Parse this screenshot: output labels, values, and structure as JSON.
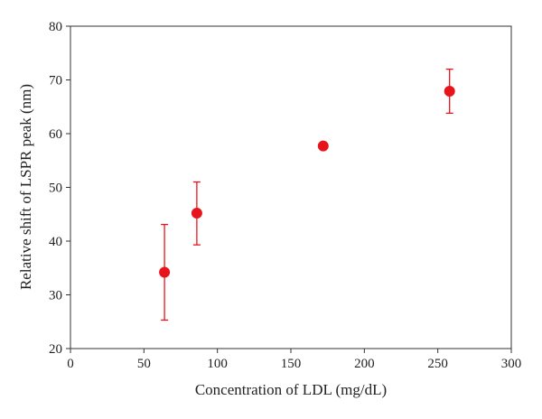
{
  "chart_data": {
    "type": "scatter",
    "xlabel": "Concentration of LDL (mg/dL)",
    "ylabel": "Relative shift of LSPR peak (nm)",
    "xlim": [
      0,
      300
    ],
    "ylim": [
      20,
      80
    ],
    "xticks": [
      0,
      50,
      100,
      150,
      200,
      250,
      300
    ],
    "yticks": [
      20,
      30,
      40,
      50,
      60,
      70,
      80
    ],
    "xtick_labels": [
      "0",
      "50",
      "100",
      "150",
      "200",
      "250",
      "300"
    ],
    "ytick_labels": [
      "20",
      "30",
      "40",
      "50",
      "60",
      "70",
      "80"
    ],
    "grid": false,
    "series": [
      {
        "color": "#e8141c",
        "points": [
          {
            "x": 64,
            "y": 34.2,
            "err_low": 25.3,
            "err_high": 43.1
          },
          {
            "x": 86,
            "y": 45.2,
            "err_low": 39.3,
            "err_high": 51.0
          },
          {
            "x": 172,
            "y": 57.7,
            "err_low": null,
            "err_high": null
          },
          {
            "x": 258,
            "y": 67.9,
            "err_low": 63.8,
            "err_high": 72.0
          }
        ]
      }
    ]
  }
}
